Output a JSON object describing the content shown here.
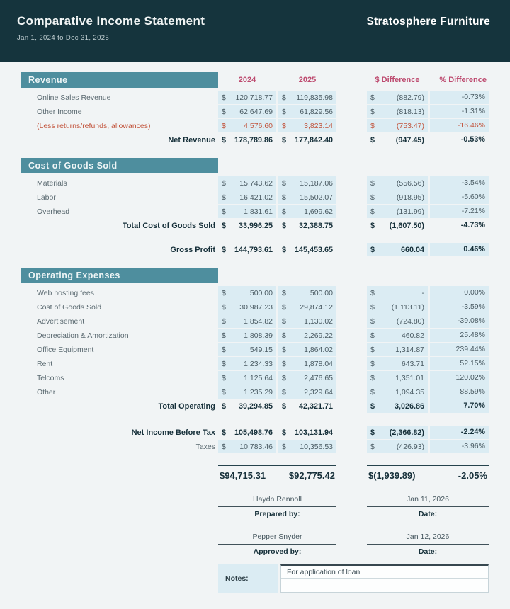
{
  "header": {
    "title": "Comparative Income Statement",
    "subtitle": "Jan 1, 2024 to Dec 31, 2025",
    "company": "Stratosphere Furniture"
  },
  "columns": {
    "y2024": "2024",
    "y2025": "2025",
    "dollar_difference": "$ Difference",
    "percent_difference": "% Difference"
  },
  "currency_symbol": "$",
  "colors": {
    "header_dark": "#15343d",
    "section_teal": "#4e8e9e",
    "accent_pink": "#bd4a6f",
    "accent_red": "#c2543c",
    "cell_blue": "#dbecf3"
  },
  "sections": [
    {
      "title": "Revenue",
      "show_column_headers": true,
      "rows": [
        {
          "label": "Online Sales Revenue",
          "type": "data",
          "v2024": "120,718.77",
          "v2025": "119,835.98",
          "diff": "(882.79)",
          "pct": "-0.73%"
        },
        {
          "label": "Other Income",
          "type": "data",
          "v2024": "62,647.69",
          "v2025": "61,829.56",
          "diff": "(818.13)",
          "pct": "-1.31%"
        },
        {
          "label": "(Less returns/refunds, allowances)",
          "type": "less",
          "v2024": "4,576.60",
          "v2025": "3,823.14",
          "diff": "(753.47)",
          "pct": "-16.46%"
        },
        {
          "label": "Net Revenue",
          "type": "total",
          "v2024": "178,789.86",
          "v2025": "177,842.40",
          "diff": "(947.45)",
          "pct": "-0.53%"
        }
      ]
    },
    {
      "title": "Cost of Goods Sold",
      "show_column_headers": false,
      "rows": [
        {
          "label": "Materials",
          "type": "data",
          "v2024": "15,743.62",
          "v2025": "15,187.06",
          "diff": "(556.56)",
          "pct": "-3.54%"
        },
        {
          "label": "Labor",
          "type": "data",
          "v2024": "16,421.02",
          "v2025": "15,502.07",
          "diff": "(918.95)",
          "pct": "-5.60%"
        },
        {
          "label": "Overhead",
          "type": "data",
          "v2024": "1,831.61",
          "v2025": "1,699.62",
          "diff": "(131.99)",
          "pct": "-7.21%"
        },
        {
          "label": "Total Cost of Goods Sold",
          "type": "total",
          "v2024": "33,996.25",
          "v2025": "32,388.75",
          "diff": "(1,607.50)",
          "pct": "-4.73%"
        },
        {
          "type": "spacer"
        },
        {
          "label": "Gross Profit",
          "type": "result",
          "v2024": "144,793.61",
          "v2025": "145,453.65",
          "diff": "660.04",
          "pct": "0.46%"
        }
      ]
    },
    {
      "title": "Operating Expenses",
      "show_column_headers": false,
      "rows": [
        {
          "label": "Web hosting fees",
          "type": "data",
          "v2024": "500.00",
          "v2025": "500.00",
          "diff": "-",
          "pct": "0.00%"
        },
        {
          "label": "Cost of Goods Sold",
          "type": "data",
          "v2024": "30,987.23",
          "v2025": "29,874.12",
          "diff": "(1,113.11)",
          "pct": "-3.59%"
        },
        {
          "label": "Advertisement",
          "type": "data",
          "v2024": "1,854.82",
          "v2025": "1,130.02",
          "diff": "(724.80)",
          "pct": "-39.08%"
        },
        {
          "label": "Depreciation & Amortization",
          "type": "data",
          "v2024": "1,808.39",
          "v2025": "2,269.22",
          "diff": "460.82",
          "pct": "25.48%"
        },
        {
          "label": "Office Equipment",
          "type": "data",
          "v2024": "549.15",
          "v2025": "1,864.02",
          "diff": "1,314.87",
          "pct": "239.44%"
        },
        {
          "label": "Rent",
          "type": "data",
          "v2024": "1,234.33",
          "v2025": "1,878.04",
          "diff": "643.71",
          "pct": "52.15%"
        },
        {
          "label": "Telcoms",
          "type": "data",
          "v2024": "1,125.64",
          "v2025": "2,476.65",
          "diff": "1,351.01",
          "pct": "120.02%"
        },
        {
          "label": "Other",
          "type": "data",
          "v2024": "1,235.29",
          "v2025": "2,329.64",
          "diff": "1,094.35",
          "pct": "88.59%"
        },
        {
          "label": "Total Operating",
          "type": "result",
          "v2024": "39,294.85",
          "v2025": "42,321.71",
          "diff": "3,026.86",
          "pct": "7.70%"
        }
      ]
    }
  ],
  "summary": {
    "rows": [
      {
        "label": "Net Income Before Tax",
        "type": "result",
        "v2024": "105,498.76",
        "v2025": "103,131.94",
        "diff": "(2,366.82)",
        "pct": "-2.24%"
      },
      {
        "label": "Taxes",
        "type": "taxes",
        "v2024": "10,783.46",
        "v2025": "10,356.53",
        "diff": "(426.93)",
        "pct": "-3.96%"
      }
    ],
    "final": {
      "v2024": "$94,715.31",
      "v2025": "$92,775.42",
      "diff": "$(1,939.89)",
      "pct": "-2.05%"
    }
  },
  "signatures": [
    {
      "name": "Haydn Rennoll",
      "role": "Prepared by:",
      "date": "Jan 11, 2026",
      "date_label": "Date:"
    },
    {
      "name": "Pepper Snyder",
      "role": "Approved by:",
      "date": "Jan 12, 2026",
      "date_label": "Date:"
    }
  ],
  "notes": {
    "label": "Notes:",
    "value": "For application of loan"
  }
}
